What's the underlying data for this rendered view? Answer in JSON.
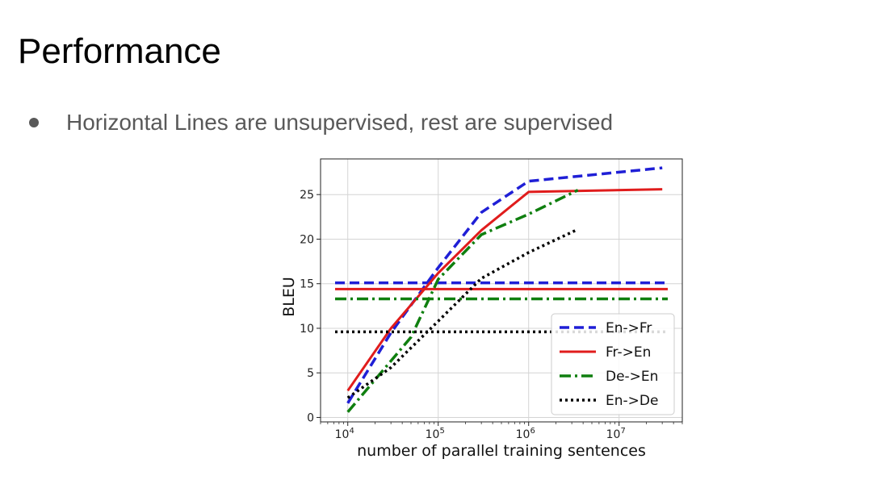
{
  "slide": {
    "title": "Performance",
    "bullet": "Horizontal Lines are unsupervised, rest are supervised"
  },
  "chart_data": {
    "type": "line",
    "xscale": "log",
    "xlim": [
      5000,
      50000000
    ],
    "ylim": [
      -0.5,
      29
    ],
    "xticks": [
      {
        "value": 10000,
        "base": "10",
        "exp": "4"
      },
      {
        "value": 100000,
        "base": "10",
        "exp": "5"
      },
      {
        "value": 1000000,
        "base": "10",
        "exp": "6"
      },
      {
        "value": 10000000,
        "base": "10",
        "exp": "7"
      }
    ],
    "yticks": [
      0,
      5,
      10,
      15,
      20,
      25
    ],
    "xlabel": "number of parallel training sentences",
    "ylabel": "BLEU",
    "grid": true,
    "legend_position": "lower-right",
    "series": [
      {
        "name": "En->Fr",
        "color": "#1f1fd6",
        "dash": "dashed",
        "points": [
          [
            10000,
            1.6
          ],
          [
            30000,
            9.5
          ],
          [
            100000,
            16.8
          ],
          [
            300000,
            23.0
          ],
          [
            1000000,
            26.5
          ],
          [
            30000000,
            28.0
          ]
        ],
        "unsupervised": 15.1
      },
      {
        "name": "Fr->En",
        "color": "#e01c1c",
        "dash": "solid",
        "points": [
          [
            10000,
            3.0
          ],
          [
            30000,
            10.0
          ],
          [
            100000,
            16.2
          ],
          [
            300000,
            21.0
          ],
          [
            1000000,
            25.3
          ],
          [
            30000000,
            25.6
          ]
        ],
        "unsupervised": 14.4
      },
      {
        "name": "De->En",
        "color": "#0f7f0f",
        "dash": "dashdot",
        "points": [
          [
            10000,
            0.6
          ],
          [
            50000,
            9.0
          ],
          [
            100000,
            15.5
          ],
          [
            300000,
            20.5
          ],
          [
            1000000,
            22.8
          ],
          [
            3500000,
            25.5
          ]
        ],
        "unsupervised": 13.3
      },
      {
        "name": "En->De",
        "color": "#000000",
        "dash": "dotted",
        "points": [
          [
            10000,
            2.2
          ],
          [
            30000,
            5.6
          ],
          [
            100000,
            10.8
          ],
          [
            300000,
            15.6
          ],
          [
            1000000,
            18.5
          ],
          [
            3500000,
            21.1
          ]
        ],
        "unsupervised": 9.6
      }
    ]
  }
}
